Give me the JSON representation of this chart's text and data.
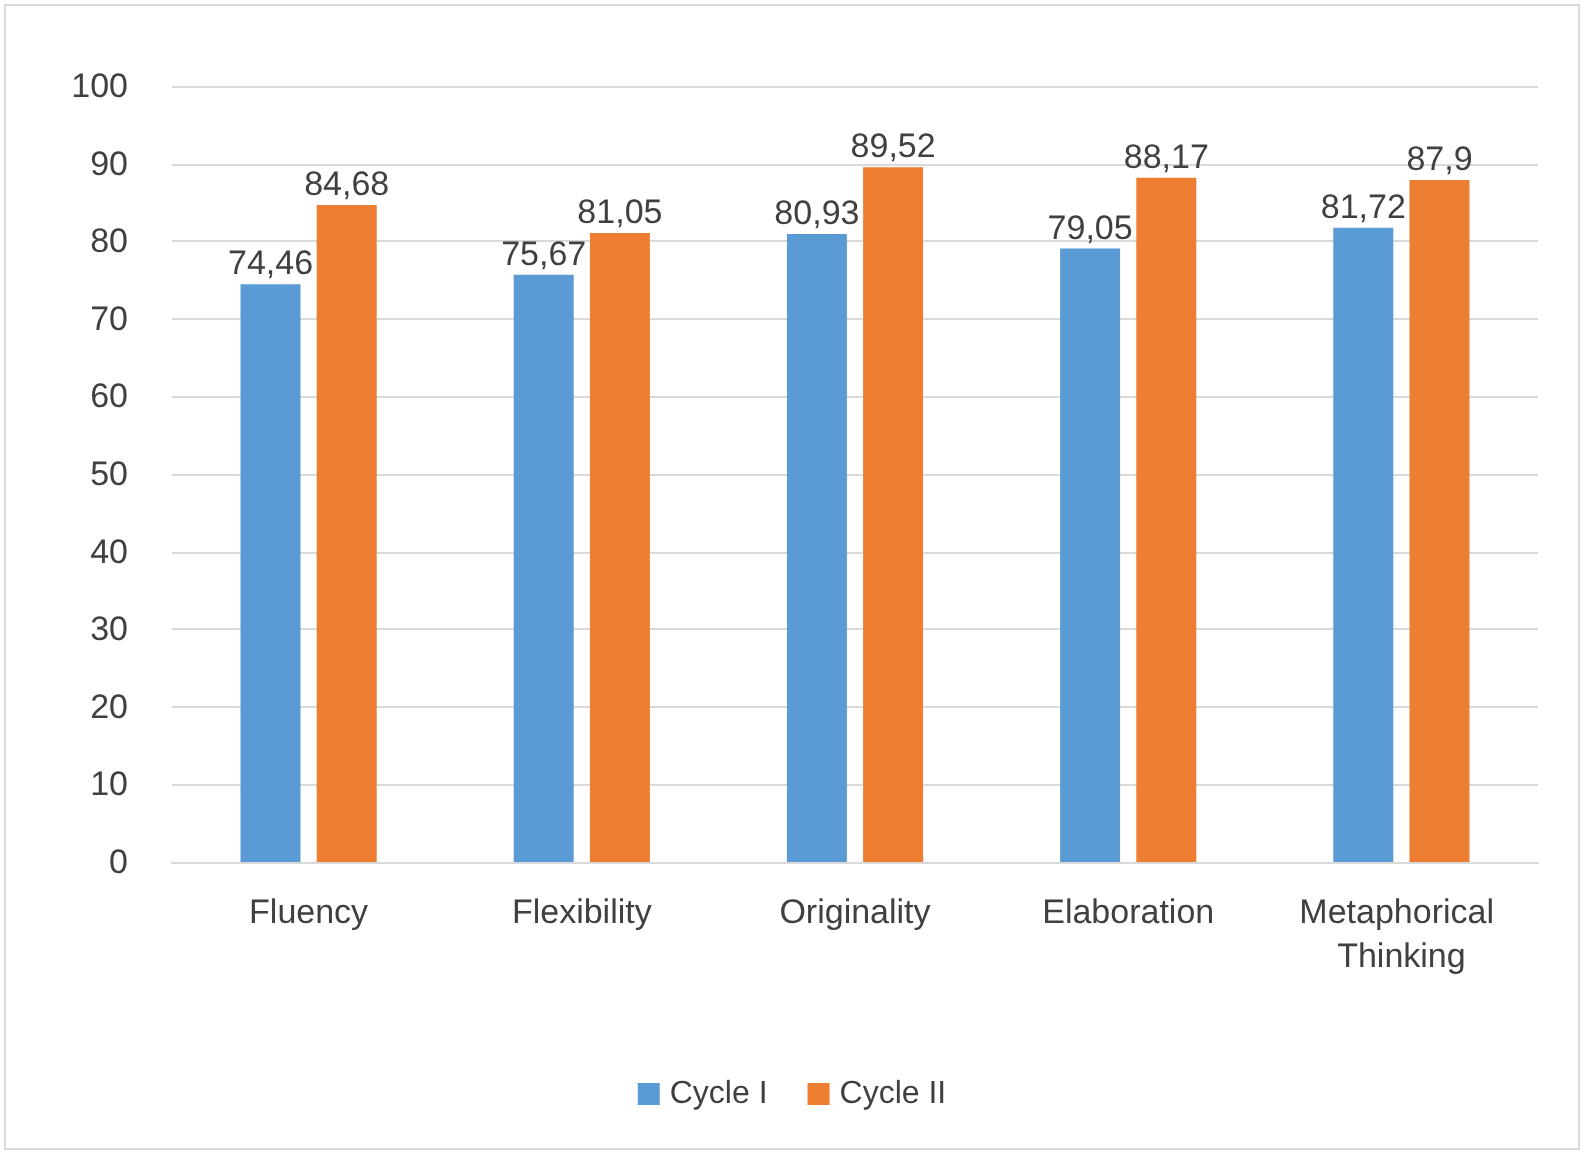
{
  "chart_data": {
    "type": "bar",
    "categories": [
      "Fluency",
      "Flexibility",
      "Originality",
      "Elaboration",
      "Metaphorical Thinking"
    ],
    "series": [
      {
        "name": "Cycle I",
        "color": "#5b9bd5",
        "values": [
          74.46,
          75.67,
          80.93,
          79.05,
          81.72
        ],
        "value_labels": [
          "74,46",
          "75,67",
          "80,93",
          "79,05",
          "81,72"
        ]
      },
      {
        "name": "Cycle II",
        "color": "#ed7d31",
        "values": [
          84.68,
          81.05,
          89.52,
          88.17,
          87.9
        ],
        "value_labels": [
          "84,68",
          "81,05",
          "89,52",
          "88,17",
          "87,9"
        ]
      }
    ],
    "ylim": [
      0,
      100
    ],
    "yticks": [
      0,
      10,
      20,
      30,
      40,
      50,
      60,
      70,
      80,
      90,
      100
    ],
    "grid": "y",
    "legend": "bottom"
  }
}
